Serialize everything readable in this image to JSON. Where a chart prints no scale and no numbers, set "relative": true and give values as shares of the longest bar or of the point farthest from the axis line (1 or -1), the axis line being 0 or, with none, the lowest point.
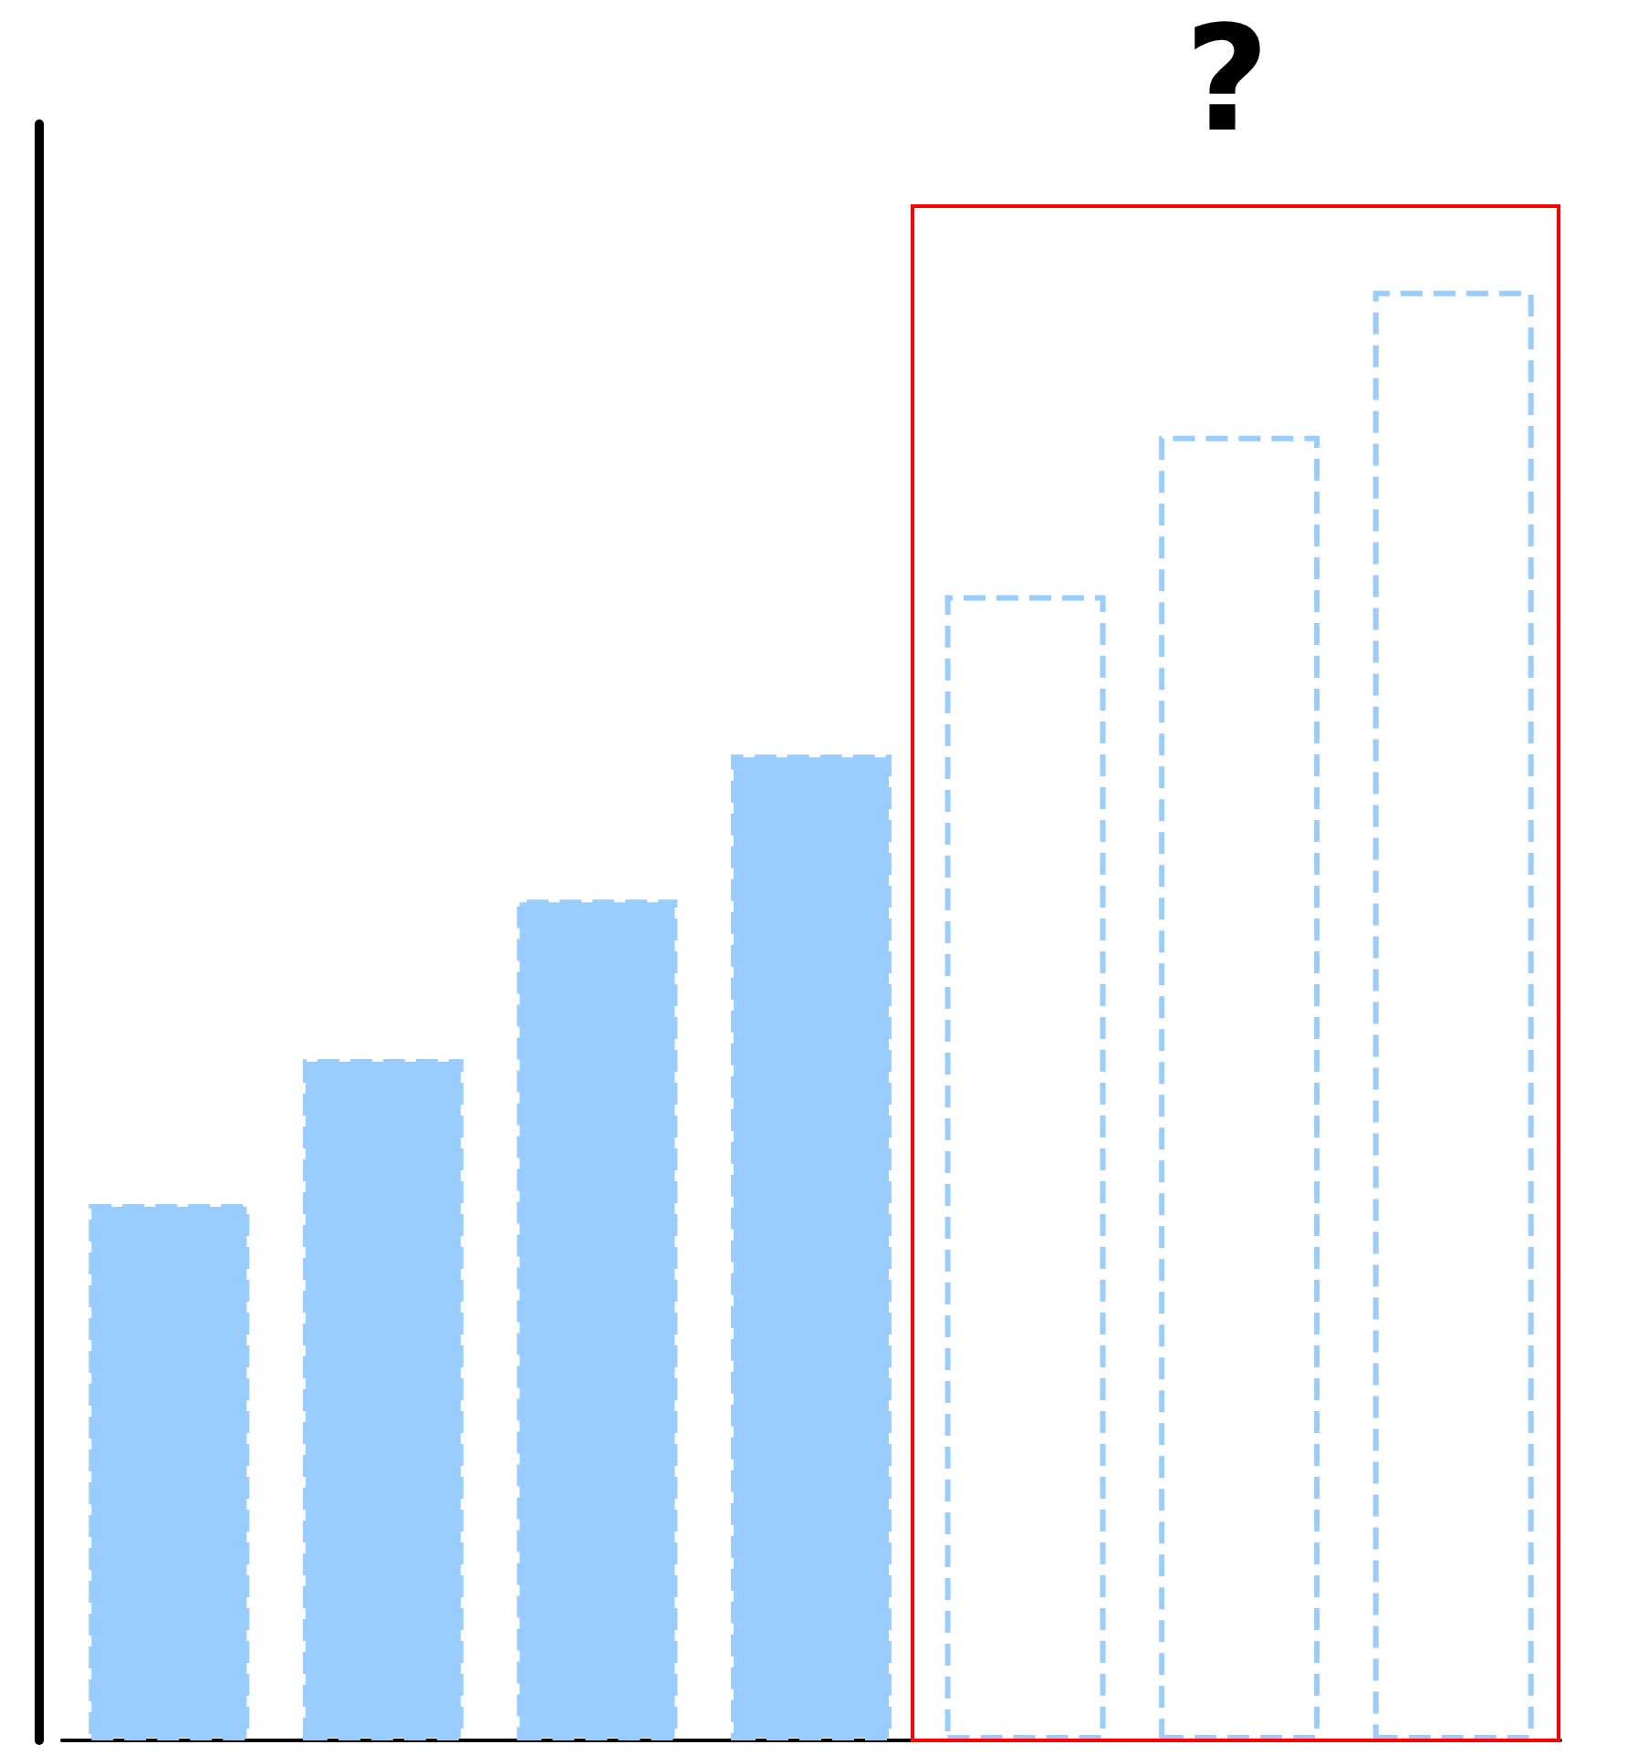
{
  "chart_data": {
    "type": "bar",
    "relative": true,
    "categories": [
      null,
      null,
      null,
      null,
      null,
      null,
      null
    ],
    "values": [
      0.37,
      0.47,
      0.58,
      0.68,
      0.79,
      0.9,
      1
    ],
    "color": "#99ccff",
    "colors": [
      "#99ccff",
      "#99ccff",
      "#99ccff",
      "#99ccff",
      "#ffffff",
      "#ffffff",
      "#ffffff"
    ],
    "line_style": "dashed",
    "annotations": [
      "?"
    ]
  }
}
